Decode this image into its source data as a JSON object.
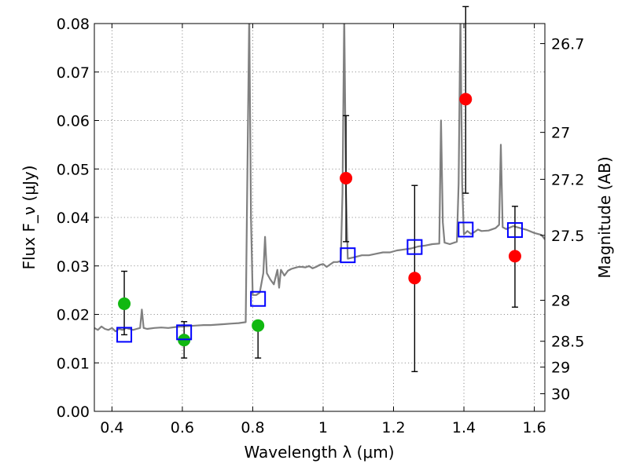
{
  "chart_data": {
    "type": "scatter",
    "xlabel": "Wavelength λ (μm)",
    "ylabel": "Flux F_ν (μJy)",
    "y2label": "Magnitude (AB)",
    "xlim": [
      0.35,
      1.63
    ],
    "ylim": [
      0.0,
      0.08
    ],
    "grid": true,
    "xticks": [
      {
        "value": 0.4,
        "label": "0.4"
      },
      {
        "value": 0.6,
        "label": "0.6"
      },
      {
        "value": 0.8,
        "label": "0.8"
      },
      {
        "value": 1.0,
        "label": "1"
      },
      {
        "value": 1.2,
        "label": "1.2"
      },
      {
        "value": 1.4,
        "label": "1.4"
      },
      {
        "value": 1.6,
        "label": "1.6"
      }
    ],
    "yticks": [
      {
        "value": 0.0,
        "label": "0.00"
      },
      {
        "value": 0.01,
        "label": "0.01"
      },
      {
        "value": 0.02,
        "label": "0.02"
      },
      {
        "value": 0.03,
        "label": "0.03"
      },
      {
        "value": 0.04,
        "label": "0.04"
      },
      {
        "value": 0.05,
        "label": "0.05"
      },
      {
        "value": 0.06,
        "label": "0.06"
      },
      {
        "value": 0.07,
        "label": "0.07"
      },
      {
        "value": 0.08,
        "label": "0.08"
      }
    ],
    "magnitude_ticks": [
      {
        "mag": 26.7,
        "label": "26.7"
      },
      {
        "mag": 27.0,
        "label": "27"
      },
      {
        "mag": 27.2,
        "label": "27.2"
      },
      {
        "mag": 27.5,
        "label": "27.5"
      },
      {
        "mag": 28.0,
        "label": "28"
      },
      {
        "mag": 28.5,
        "label": "28.5"
      },
      {
        "mag": 29.0,
        "label": "29"
      },
      {
        "mag": 30.0,
        "label": "30"
      }
    ],
    "series": [
      {
        "kind": "line",
        "color": "#808080",
        "x": [
          0.35,
          0.36,
          0.37,
          0.38,
          0.39,
          0.4,
          0.41,
          0.42,
          0.43,
          0.44,
          0.45,
          0.46,
          0.47,
          0.48,
          0.485,
          0.49,
          0.5,
          0.52,
          0.54,
          0.56,
          0.58,
          0.6,
          0.62,
          0.64,
          0.66,
          0.68,
          0.7,
          0.72,
          0.74,
          0.76,
          0.78,
          0.785,
          0.79,
          0.795,
          0.8,
          0.81,
          0.82,
          0.83,
          0.835,
          0.84,
          0.85,
          0.86,
          0.87,
          0.875,
          0.88,
          0.89,
          0.9,
          0.91,
          0.92,
          0.93,
          0.94,
          0.95,
          0.96,
          0.97,
          0.98,
          0.99,
          1.0,
          1.01,
          1.02,
          1.03,
          1.04,
          1.05,
          1.055,
          1.06,
          1.065,
          1.07,
          1.09,
          1.11,
          1.13,
          1.15,
          1.17,
          1.19,
          1.21,
          1.23,
          1.25,
          1.27,
          1.29,
          1.31,
          1.33,
          1.335,
          1.34,
          1.345,
          1.36,
          1.38,
          1.385,
          1.39,
          1.395,
          1.4,
          1.41,
          1.42,
          1.43,
          1.44,
          1.45,
          1.47,
          1.49,
          1.5,
          1.505,
          1.51,
          1.52,
          1.54,
          1.56,
          1.58,
          1.6,
          1.62,
          1.63
        ],
        "y": [
          0.0172,
          0.0168,
          0.0175,
          0.017,
          0.0168,
          0.0172,
          0.0165,
          0.017,
          0.0168,
          0.0172,
          0.017,
          0.0168,
          0.017,
          0.0172,
          0.021,
          0.0172,
          0.017,
          0.0172,
          0.0173,
          0.0172,
          0.0174,
          0.0175,
          0.0176,
          0.0177,
          0.0178,
          0.0178,
          0.0179,
          0.018,
          0.0181,
          0.0182,
          0.0184,
          0.05,
          0.082,
          0.04,
          0.024,
          0.024,
          0.0245,
          0.0285,
          0.036,
          0.0285,
          0.0272,
          0.0262,
          0.0292,
          0.0255,
          0.0292,
          0.028,
          0.029,
          0.0294,
          0.0296,
          0.0298,
          0.0298,
          0.0297,
          0.03,
          0.0295,
          0.0298,
          0.0302,
          0.0304,
          0.0298,
          0.0303,
          0.0308,
          0.0308,
          0.031,
          0.045,
          0.082,
          0.045,
          0.0315,
          0.0318,
          0.0322,
          0.0322,
          0.0325,
          0.0328,
          0.0328,
          0.0332,
          0.0334,
          0.0336,
          0.034,
          0.0342,
          0.0345,
          0.0346,
          0.06,
          0.039,
          0.0348,
          0.0345,
          0.035,
          0.047,
          0.082,
          0.047,
          0.0365,
          0.0372,
          0.0366,
          0.037,
          0.0375,
          0.0372,
          0.0373,
          0.0378,
          0.0385,
          0.055,
          0.038,
          0.0376,
          0.0382,
          0.0378,
          0.0374,
          0.0368,
          0.0364,
          0.0355
        ]
      },
      {
        "kind": "points",
        "marker": "circle",
        "color": "#11b811",
        "x": [
          0.435,
          0.605,
          0.815
        ],
        "y": [
          0.0222,
          0.0147,
          0.0177
        ],
        "err": [
          [
            0.0158,
            0.0289
          ],
          [
            0.011,
            0.0185
          ],
          [
            0.011,
            0.0187
          ]
        ]
      },
      {
        "kind": "points",
        "marker": "circle",
        "color": "#ff0000",
        "x": [
          1.065,
          1.26,
          1.405,
          1.545
        ],
        "y": [
          0.0481,
          0.0275,
          0.0644,
          0.032
        ],
        "err": [
          [
            0.035,
            0.061
          ],
          [
            0.0082,
            0.0466
          ],
          [
            0.045,
            0.0835
          ],
          [
            0.0215,
            0.0423
          ]
        ]
      },
      {
        "kind": "points",
        "marker": "square-open",
        "color": "#0000ff",
        "x": [
          0.435,
          0.605,
          0.815,
          1.07,
          1.26,
          1.405,
          1.545
        ],
        "y": [
          0.0158,
          0.0163,
          0.0232,
          0.0322,
          0.0339,
          0.0375,
          0.0374
        ]
      }
    ]
  }
}
